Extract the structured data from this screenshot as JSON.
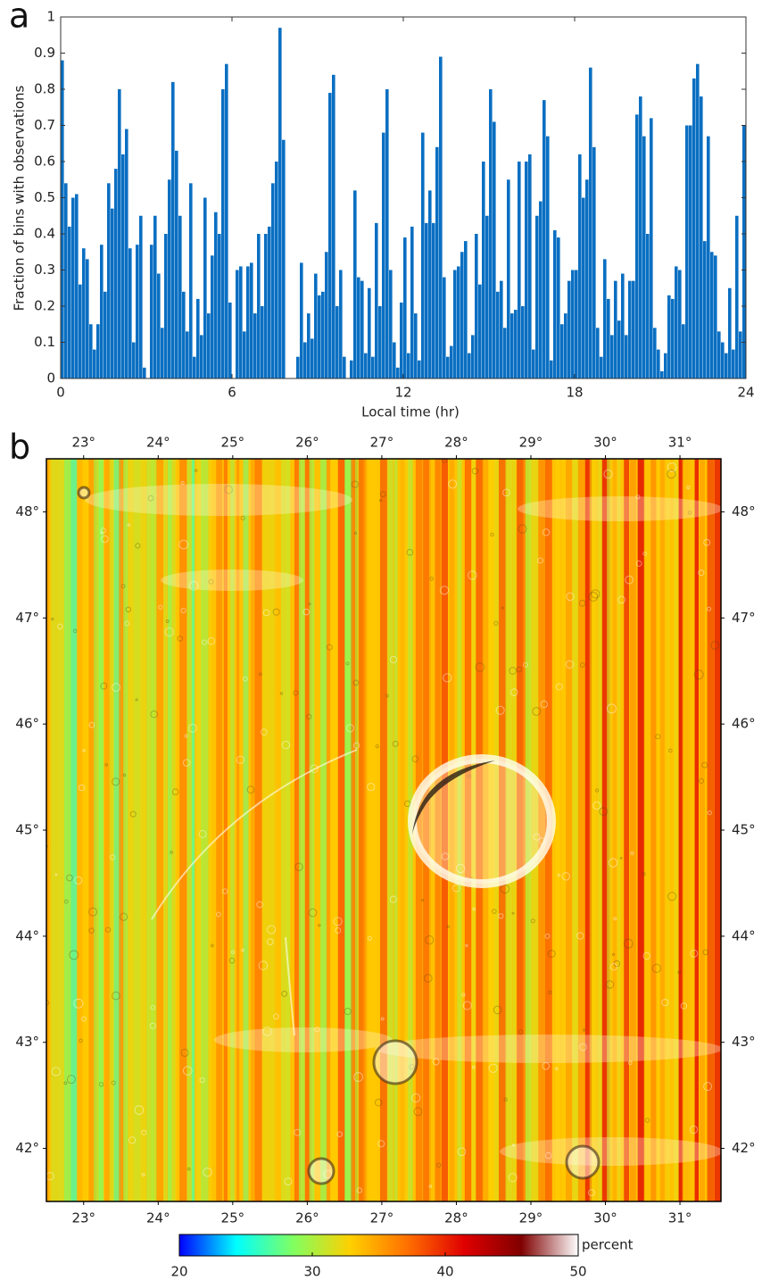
{
  "chart_data": [
    {
      "type": "histogram",
      "panel_label": "a",
      "xlabel": "Local time (hr)",
      "ylabel": "Fraction of bins with observations",
      "color": "#0a6fc2",
      "bins": [
        0,
        0.125,
        0.25,
        0.375,
        0.5,
        0.625,
        0.75,
        0.875,
        1,
        1.125,
        1.25,
        1.375,
        1.5,
        1.625,
        1.75,
        1.875,
        2,
        2.125,
        2.25,
        2.375,
        2.5,
        2.625,
        2.75,
        2.875,
        3,
        3.125,
        3.25,
        3.375,
        3.5,
        3.625,
        3.75,
        3.875,
        4,
        4.125,
        4.25,
        4.375,
        4.5,
        4.625,
        4.75,
        4.875,
        5,
        5.125,
        5.25,
        5.375,
        5.5,
        5.625,
        5.75,
        5.875,
        6,
        6.125,
        6.25,
        6.375,
        6.5,
        6.625,
        6.75,
        6.875,
        7,
        7.125,
        7.25,
        7.375,
        7.5,
        7.625,
        7.75,
        7.875,
        8,
        8.125,
        8.25,
        8.375,
        8.5,
        8.625,
        8.75,
        8.875,
        9,
        9.125,
        9.25,
        9.375,
        9.5,
        9.625,
        9.75,
        9.875,
        10,
        10.125,
        10.25,
        10.375,
        10.5,
        10.625,
        10.75,
        10.875,
        11,
        11.125,
        11.25,
        11.375,
        11.5,
        11.625,
        11.75,
        11.875,
        12,
        12.125,
        12.25,
        12.375,
        12.5,
        12.625,
        12.75,
        12.875,
        13,
        13.125,
        13.25,
        13.375,
        13.5,
        13.625,
        13.75,
        13.875,
        14,
        14.125,
        14.25,
        14.375,
        14.5,
        14.625,
        14.75,
        14.875,
        15,
        15.125,
        15.25,
        15.375,
        15.5,
        15.625,
        15.75,
        15.875,
        16,
        16.125,
        16.25,
        16.375,
        16.5,
        16.625,
        16.75,
        16.875,
        17,
        17.125,
        17.25,
        17.375,
        17.5,
        17.625,
        17.75,
        17.875,
        18,
        18.125,
        18.25,
        18.375,
        18.5,
        18.625,
        18.75,
        18.875,
        19,
        19.125,
        19.25,
        19.375,
        19.5,
        19.625,
        19.75,
        19.875,
        20,
        20.125,
        20.25,
        20.375,
        20.5,
        20.625,
        20.75,
        20.875,
        21,
        21.125,
        21.25,
        21.375,
        21.5,
        21.625,
        21.75,
        21.875,
        22,
        22.125,
        22.25,
        22.375,
        22.5,
        22.625,
        22.75,
        22.875,
        23,
        23.125,
        23.25,
        23.375,
        23.5,
        23.625,
        23.75,
        23.875,
        24
      ],
      "values": [
        0.88,
        0.54,
        0.42,
        0.5,
        0.51,
        0.26,
        0.36,
        0.33,
        0.15,
        0.08,
        0.15,
        0.37,
        0.24,
        0.54,
        0.47,
        0.58,
        0.8,
        0.62,
        0.69,
        0.36,
        0.1,
        0.37,
        0.45,
        0.03,
        0,
        0.37,
        0.45,
        0.29,
        0.14,
        0.4,
        0.55,
        0.82,
        0.63,
        0.45,
        0.24,
        0.13,
        0.54,
        0.06,
        0.22,
        0.12,
        0.5,
        0.18,
        0.34,
        0.46,
        0.4,
        0.8,
        0.87,
        0.21,
        0,
        0.3,
        0.31,
        0.13,
        0.31,
        0.32,
        0.18,
        0.4,
        0.2,
        0.4,
        0.42,
        0.54,
        0.6,
        0.97,
        0.66,
        0,
        0,
        0,
        0.06,
        0.32,
        0.1,
        0.18,
        0.11,
        0.29,
        0.23,
        0.24,
        0.35,
        0.79,
        0.84,
        0.2,
        0.3,
        0.06,
        0,
        0.05,
        0.52,
        0.28,
        0.27,
        0.07,
        0.25,
        0.06,
        0.43,
        0.2,
        0.68,
        0.8,
        0.3,
        0.1,
        0.03,
        0.21,
        0.39,
        0.07,
        0.42,
        0.18,
        0.05,
        0.68,
        0.43,
        0.52,
        0.43,
        0.64,
        0.89,
        0.28,
        0.06,
        0.09,
        0.3,
        0.31,
        0.35,
        0.38,
        0.07,
        0.12,
        0.4,
        0.26,
        0.6,
        0.45,
        0.8,
        0.71,
        0.24,
        0.27,
        0.14,
        0.55,
        0.18,
        0.19,
        0.6,
        0.2,
        0.6,
        0.62,
        0.08,
        0.45,
        0.49,
        0.77,
        0.67,
        0.05,
        0.41,
        0.39,
        0.15,
        0.18,
        0.27,
        0.3,
        0.3,
        0.62,
        0.5,
        0.55,
        0.86,
        0.64,
        0.14,
        0.06,
        0.33,
        0.22,
        0.12,
        0.27,
        0.16,
        0.29,
        0.12,
        0.27,
        0.27,
        0.73,
        0.78,
        0.67,
        0.4,
        0.72,
        0.14,
        0.08,
        0.02,
        0.07,
        0.23,
        0.22,
        0.31,
        0.3,
        0.15,
        0.7,
        0.7,
        0.83,
        0.87,
        0.78,
        0.38,
        0.67,
        0.35,
        0.34,
        0.13,
        0.1,
        0.07,
        0.25,
        0.08,
        0.45,
        0.13,
        0.7
      ],
      "xlim": [
        0,
        24
      ],
      "xticks": [
        0,
        6,
        12,
        18,
        24
      ],
      "ylim": [
        0,
        1
      ],
      "yticks": [
        0,
        0.1,
        0.2,
        0.3,
        0.4,
        0.5,
        0.6,
        0.7,
        0.8,
        0.9,
        1
      ]
    },
    {
      "type": "heatmap",
      "panel_label": "b",
      "xlim": [
        22.5,
        31.55
      ],
      "xticks": [
        {
          "value": 23,
          "label": "23°"
        },
        {
          "value": 24,
          "label": "24°"
        },
        {
          "value": 25,
          "label": "25°"
        },
        {
          "value": 26,
          "label": "26°"
        },
        {
          "value": 27,
          "label": "27°"
        },
        {
          "value": 28,
          "label": "28°"
        },
        {
          "value": 29,
          "label": "29°"
        },
        {
          "value": 30,
          "label": "30°"
        },
        {
          "value": 31,
          "label": "31°"
        }
      ],
      "ylim": [
        41.5,
        48.5
      ],
      "yticks": [
        {
          "value": 42,
          "label": "42°"
        },
        {
          "value": 43,
          "label": "43°"
        },
        {
          "value": 44,
          "label": "44°"
        },
        {
          "value": 45,
          "label": "45°"
        },
        {
          "value": 46,
          "label": "46°"
        },
        {
          "value": 47,
          "label": "47°"
        },
        {
          "value": 48,
          "label": "48°"
        }
      ],
      "colorbar": {
        "label": "percent",
        "lim": [
          20,
          50
        ],
        "ticks": [
          20,
          30,
          40,
          50
        ],
        "colors": [
          "#0000ff",
          "#00ffff",
          "#80ff60",
          "#ffd000",
          "#ff7000",
          "#e00000",
          "#800000",
          "#ffffff"
        ]
      }
    }
  ]
}
